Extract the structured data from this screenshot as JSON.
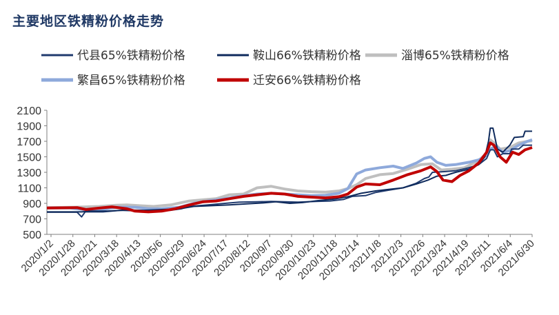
{
  "chart_data": {
    "type": "line",
    "title": "主要地区铁精粉价格走势",
    "xlabel": "",
    "ylabel": "",
    "ylim": [
      500,
      2100
    ],
    "yticks": [
      500,
      700,
      900,
      1100,
      1300,
      1500,
      1700,
      1900,
      2100
    ],
    "xlim": [
      "2020-01-02",
      "2021-06-30"
    ],
    "x_tick_labels": [
      "2020/1/2",
      "2020/1/28",
      "2020/2/21",
      "2020/3/18",
      "2020/4/13",
      "2020/5/6",
      "2020/5/29",
      "2020/6/24",
      "2020/7/17",
      "2020/8/12",
      "2020/9/7",
      "2020/9/30",
      "2020/10/23",
      "2020/11/18",
      "2020/12/14",
      "2021/1/8",
      "2021/2/3",
      "2021/2/26",
      "2021/3/24",
      "2021/4/19",
      "2021/5/11",
      "2021/6/4",
      "2021/6/30"
    ],
    "grid": false,
    "legend_position": "top",
    "series": [
      {
        "name": "代县65%铁精粉价格",
        "color": "#1F3A6E",
        "width": 2,
        "points": [
          [
            "2020-01-02",
            785
          ],
          [
            "2020-02-05",
            785
          ],
          [
            "2020-02-10",
            725
          ],
          [
            "2020-02-14",
            790
          ],
          [
            "2020-03-05",
            790
          ],
          [
            "2020-03-25",
            810
          ],
          [
            "2020-04-20",
            800
          ],
          [
            "2020-05-20",
            810
          ],
          [
            "2020-06-01",
            830
          ],
          [
            "2020-06-10",
            860
          ],
          [
            "2020-07-01",
            880
          ],
          [
            "2020-07-20",
            900
          ],
          [
            "2020-08-05",
            915
          ],
          [
            "2020-08-25",
            920
          ],
          [
            "2020-09-10",
            925
          ],
          [
            "2020-09-25",
            920
          ],
          [
            "2020-10-10",
            915
          ],
          [
            "2020-10-30",
            925
          ],
          [
            "2020-11-15",
            930
          ],
          [
            "2020-11-30",
            950
          ],
          [
            "2020-12-10",
            990
          ],
          [
            "2020-12-25",
            1000
          ],
          [
            "2021-01-05",
            1040
          ],
          [
            "2021-01-20",
            1070
          ],
          [
            "2021-02-05",
            1100
          ],
          [
            "2021-02-20",
            1160
          ],
          [
            "2021-03-01",
            1220
          ],
          [
            "2021-03-06",
            1240
          ],
          [
            "2021-03-10",
            1300
          ],
          [
            "2021-03-25",
            1310
          ],
          [
            "2021-04-05",
            1320
          ],
          [
            "2021-04-20",
            1360
          ],
          [
            "2021-05-01",
            1400
          ],
          [
            "2021-05-10",
            1480
          ],
          [
            "2021-05-14",
            1590
          ],
          [
            "2021-05-18",
            1590
          ],
          [
            "2021-05-22",
            1500
          ],
          [
            "2021-05-28",
            1540
          ],
          [
            "2021-06-05",
            1540
          ],
          [
            "2021-06-07",
            1600
          ],
          [
            "2021-06-15",
            1600
          ],
          [
            "2021-06-20",
            1650
          ],
          [
            "2021-06-30",
            1650
          ]
        ]
      },
      {
        "name": "鞍山66%铁精粉价格",
        "color": "#0E2A5C",
        "width": 2,
        "points": [
          [
            "2020-01-02",
            790
          ],
          [
            "2020-02-10",
            790
          ],
          [
            "2020-02-20",
            800
          ],
          [
            "2020-03-10",
            800
          ],
          [
            "2020-04-01",
            815
          ],
          [
            "2020-04-20",
            810
          ],
          [
            "2020-05-10",
            820
          ],
          [
            "2020-05-30",
            830
          ],
          [
            "2020-06-15",
            860
          ],
          [
            "2020-07-05",
            870
          ],
          [
            "2020-07-25",
            880
          ],
          [
            "2020-08-15",
            895
          ],
          [
            "2020-09-01",
            905
          ],
          [
            "2020-09-15",
            920
          ],
          [
            "2020-10-01",
            900
          ],
          [
            "2020-10-15",
            910
          ],
          [
            "2020-11-01",
            935
          ],
          [
            "2020-11-20",
            955
          ],
          [
            "2020-12-05",
            985
          ],
          [
            "2020-12-20",
            1030
          ],
          [
            "2021-01-05",
            1060
          ],
          [
            "2021-01-20",
            1080
          ],
          [
            "2021-02-05",
            1100
          ],
          [
            "2021-02-20",
            1150
          ],
          [
            "2021-03-05",
            1200
          ],
          [
            "2021-03-15",
            1250
          ],
          [
            "2021-03-25",
            1260
          ],
          [
            "2021-04-05",
            1300
          ],
          [
            "2021-04-20",
            1340
          ],
          [
            "2021-05-01",
            1400
          ],
          [
            "2021-05-08",
            1500
          ],
          [
            "2021-05-12",
            1700
          ],
          [
            "2021-05-14",
            1870
          ],
          [
            "2021-05-17",
            1870
          ],
          [
            "2021-05-22",
            1600
          ],
          [
            "2021-05-28",
            1560
          ],
          [
            "2021-06-05",
            1650
          ],
          [
            "2021-06-10",
            1750
          ],
          [
            "2021-06-20",
            1760
          ],
          [
            "2021-06-22",
            1830
          ],
          [
            "2021-06-30",
            1830
          ]
        ]
      },
      {
        "name": "淄博65%铁精粉价格",
        "color": "#BFBFBF",
        "width": 4,
        "points": [
          [
            "2020-01-02",
            845
          ],
          [
            "2020-02-01",
            850
          ],
          [
            "2020-02-15",
            855
          ],
          [
            "2020-03-01",
            860
          ],
          [
            "2020-03-20",
            875
          ],
          [
            "2020-04-01",
            880
          ],
          [
            "2020-04-15",
            870
          ],
          [
            "2020-05-01",
            860
          ],
          [
            "2020-05-20",
            880
          ],
          [
            "2020-06-10",
            930
          ],
          [
            "2020-06-25",
            945
          ],
          [
            "2020-07-10",
            960
          ],
          [
            "2020-07-25",
            1010
          ],
          [
            "2020-08-10",
            1020
          ],
          [
            "2020-08-25",
            1100
          ],
          [
            "2020-09-10",
            1120
          ],
          [
            "2020-09-25",
            1085
          ],
          [
            "2020-10-10",
            1060
          ],
          [
            "2020-10-25",
            1050
          ],
          [
            "2020-11-10",
            1045
          ],
          [
            "2020-11-25",
            1060
          ],
          [
            "2020-12-05",
            1090
          ],
          [
            "2020-12-15",
            1140
          ],
          [
            "2020-12-25",
            1220
          ],
          [
            "2021-01-10",
            1270
          ],
          [
            "2021-01-25",
            1285
          ],
          [
            "2021-02-10",
            1340
          ],
          [
            "2021-02-25",
            1400
          ],
          [
            "2021-03-10",
            1410
          ],
          [
            "2021-03-20",
            1330
          ],
          [
            "2021-04-01",
            1340
          ],
          [
            "2021-04-15",
            1360
          ],
          [
            "2021-05-01",
            1450
          ],
          [
            "2021-05-10",
            1550
          ],
          [
            "2021-05-14",
            1720
          ],
          [
            "2021-05-18",
            1680
          ],
          [
            "2021-05-25",
            1600
          ],
          [
            "2021-06-05",
            1620
          ],
          [
            "2021-06-15",
            1680
          ],
          [
            "2021-06-25",
            1700
          ],
          [
            "2021-06-30",
            1705
          ]
        ]
      },
      {
        "name": "繁昌65%铁精粉价格",
        "color": "#8EA9DB",
        "width": 4,
        "points": [
          [
            "2020-01-02",
            840
          ],
          [
            "2020-01-28",
            840
          ],
          [
            "2020-02-12",
            820
          ],
          [
            "2020-02-20",
            810
          ],
          [
            "2020-03-05",
            820
          ],
          [
            "2020-03-20",
            850
          ],
          [
            "2020-04-10",
            850
          ],
          [
            "2020-04-25",
            830
          ],
          [
            "2020-05-10",
            830
          ],
          [
            "2020-05-30",
            850
          ],
          [
            "2020-06-15",
            900
          ],
          [
            "2020-07-01",
            930
          ],
          [
            "2020-07-20",
            960
          ],
          [
            "2020-08-05",
            990
          ],
          [
            "2020-08-25",
            1020
          ],
          [
            "2020-09-10",
            1030
          ],
          [
            "2020-09-25",
            1020
          ],
          [
            "2020-10-10",
            1010
          ],
          [
            "2020-10-25",
            1000
          ],
          [
            "2020-11-10",
            1005
          ],
          [
            "2020-11-25",
            1030
          ],
          [
            "2020-12-05",
            1090
          ],
          [
            "2020-12-15",
            1280
          ],
          [
            "2020-12-25",
            1330
          ],
          [
            "2021-01-10",
            1360
          ],
          [
            "2021-01-25",
            1380
          ],
          [
            "2021-02-05",
            1350
          ],
          [
            "2021-02-20",
            1420
          ],
          [
            "2021-03-01",
            1480
          ],
          [
            "2021-03-08",
            1500
          ],
          [
            "2021-03-15",
            1430
          ],
          [
            "2021-03-25",
            1390
          ],
          [
            "2021-04-05",
            1400
          ],
          [
            "2021-04-20",
            1430
          ],
          [
            "2021-05-01",
            1460
          ],
          [
            "2021-05-10",
            1520
          ],
          [
            "2021-05-14",
            1600
          ],
          [
            "2021-05-20",
            1640
          ],
          [
            "2021-05-28",
            1560
          ],
          [
            "2021-06-05",
            1580
          ],
          [
            "2021-06-15",
            1650
          ],
          [
            "2021-06-25",
            1700
          ],
          [
            "2021-06-30",
            1720
          ]
        ]
      },
      {
        "name": "迁安66%铁精粉价格",
        "color": "#C00000",
        "width": 4,
        "points": [
          [
            "2020-01-02",
            840
          ],
          [
            "2020-02-05",
            845
          ],
          [
            "2020-02-15",
            820
          ],
          [
            "2020-03-01",
            840
          ],
          [
            "2020-03-15",
            855
          ],
          [
            "2020-04-01",
            830
          ],
          [
            "2020-04-10",
            800
          ],
          [
            "2020-04-25",
            790
          ],
          [
            "2020-05-10",
            800
          ],
          [
            "2020-05-25",
            830
          ],
          [
            "2020-06-10",
            880
          ],
          [
            "2020-06-25",
            920
          ],
          [
            "2020-07-10",
            930
          ],
          [
            "2020-07-25",
            960
          ],
          [
            "2020-08-10",
            990
          ],
          [
            "2020-08-25",
            1010
          ],
          [
            "2020-09-10",
            1030
          ],
          [
            "2020-09-25",
            1020
          ],
          [
            "2020-10-10",
            990
          ],
          [
            "2020-10-25",
            980
          ],
          [
            "2020-11-10",
            970
          ],
          [
            "2020-11-25",
            985
          ],
          [
            "2020-12-05",
            1020
          ],
          [
            "2020-12-15",
            1110
          ],
          [
            "2020-12-25",
            1150
          ],
          [
            "2021-01-10",
            1140
          ],
          [
            "2021-01-25",
            1200
          ],
          [
            "2021-02-10",
            1270
          ],
          [
            "2021-02-25",
            1320
          ],
          [
            "2021-03-08",
            1370
          ],
          [
            "2021-03-15",
            1310
          ],
          [
            "2021-03-22",
            1200
          ],
          [
            "2021-04-01",
            1180
          ],
          [
            "2021-04-10",
            1260
          ],
          [
            "2021-04-20",
            1320
          ],
          [
            "2021-05-01",
            1420
          ],
          [
            "2021-05-10",
            1560
          ],
          [
            "2021-05-14",
            1680
          ],
          [
            "2021-05-18",
            1650
          ],
          [
            "2021-05-25",
            1500
          ],
          [
            "2021-06-01",
            1430
          ],
          [
            "2021-06-08",
            1560
          ],
          [
            "2021-06-15",
            1530
          ],
          [
            "2021-06-22",
            1590
          ],
          [
            "2021-06-30",
            1620
          ]
        ]
      }
    ]
  }
}
